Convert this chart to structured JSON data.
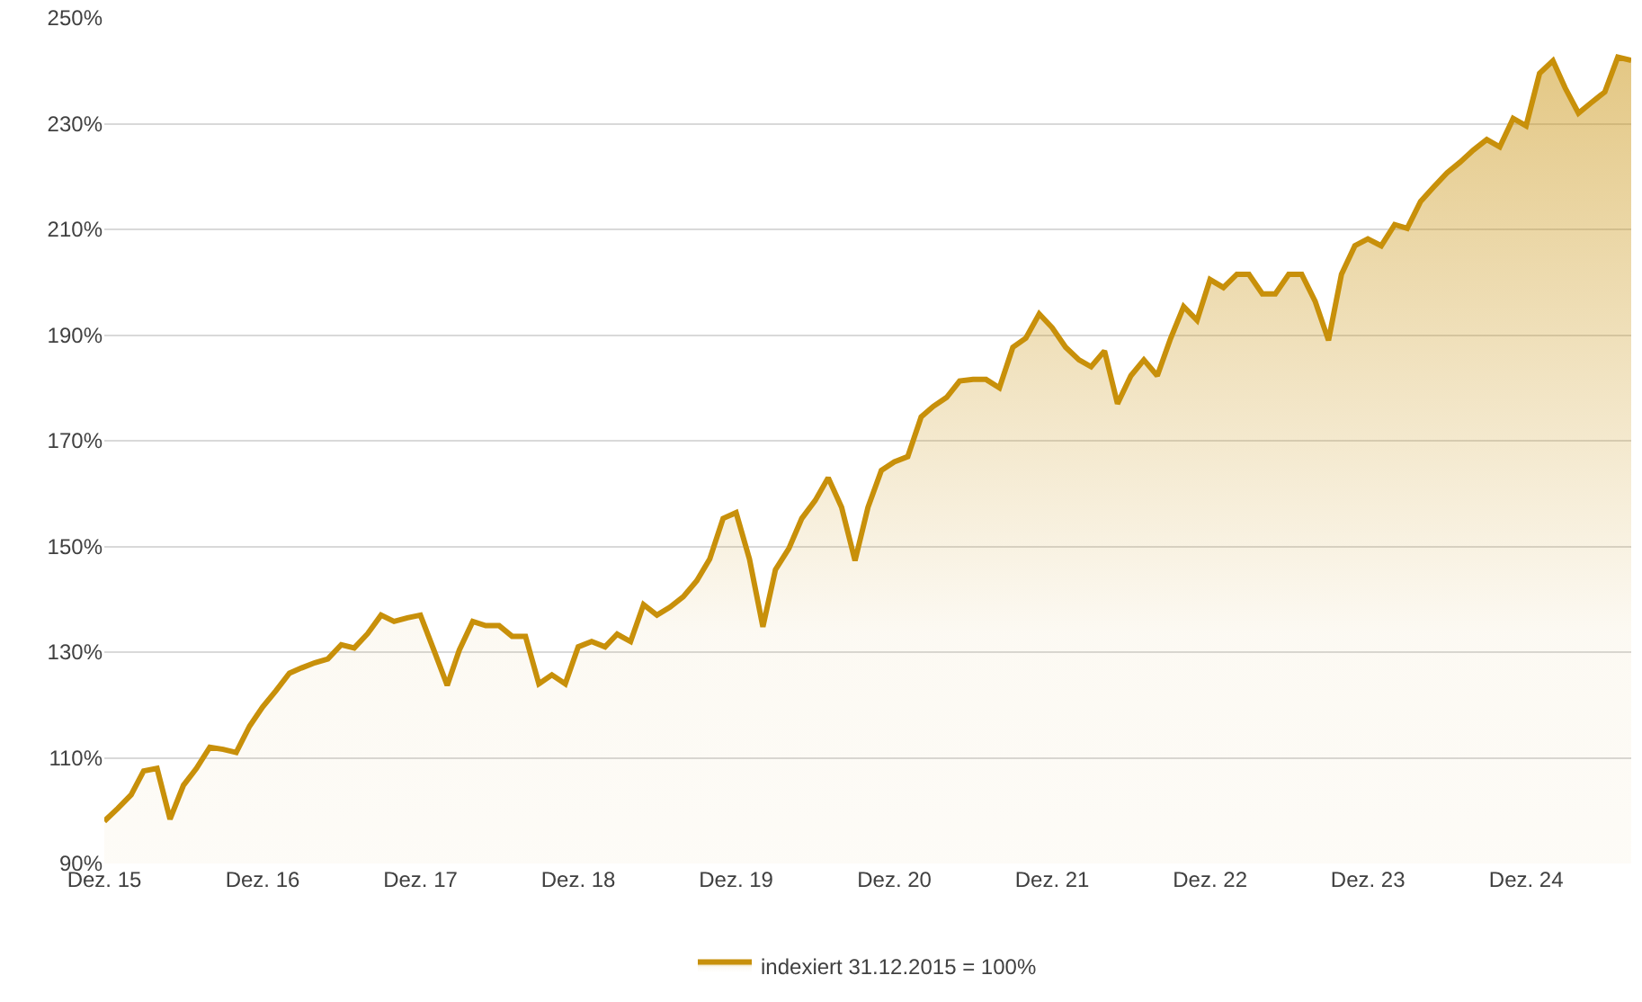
{
  "chart_data": {
    "type": "area",
    "legend": "bottom",
    "grid": "y",
    "marker": "none",
    "line_style": "solid",
    "xlim": [
      "2015-12",
      "2025-08"
    ],
    "xticks": [
      {
        "value": "2015-12",
        "label": "Dez. 15"
      },
      {
        "value": "2016-12",
        "label": "Dez. 16"
      },
      {
        "value": "2017-12",
        "label": "Dez. 17"
      },
      {
        "value": "2018-12",
        "label": "Dez. 18"
      },
      {
        "value": "2019-12",
        "label": "Dez. 19"
      },
      {
        "value": "2020-12",
        "label": "Dez. 20"
      },
      {
        "value": "2021-12",
        "label": "Dez. 21"
      },
      {
        "value": "2022-12",
        "label": "Dez. 22"
      },
      {
        "value": "2023-12",
        "label": "Dez. 23"
      },
      {
        "value": "2024-12",
        "label": "Dez. 24"
      }
    ],
    "ylim": [
      90,
      250
    ],
    "yticks": [
      {
        "value": 90,
        "label": "90%"
      },
      {
        "value": 110,
        "label": "110%"
      },
      {
        "value": 130,
        "label": "130%"
      },
      {
        "value": 150,
        "label": "150%"
      },
      {
        "value": 170,
        "label": "170%"
      },
      {
        "value": 190,
        "label": "190%"
      },
      {
        "value": 210,
        "label": "210%"
      },
      {
        "value": 230,
        "label": "230%"
      },
      {
        "value": 250,
        "label": "250%"
      }
    ],
    "x": [
      "2015-12",
      "2016-01",
      "2016-02",
      "2016-03",
      "2016-04",
      "2016-05",
      "2016-06",
      "2016-07",
      "2016-08",
      "2016-09",
      "2016-10",
      "2016-11",
      "2016-12",
      "2017-01",
      "2017-02",
      "2017-03",
      "2017-04",
      "2017-05",
      "2017-06",
      "2017-07",
      "2017-08",
      "2017-09",
      "2017-10",
      "2017-11",
      "2017-12",
      "2018-01",
      "2018-02",
      "2018-03",
      "2018-04",
      "2018-05",
      "2018-06",
      "2018-07",
      "2018-08",
      "2018-09",
      "2018-10",
      "2018-11",
      "2018-12",
      "2019-01",
      "2019-02",
      "2019-03",
      "2019-04",
      "2019-05",
      "2019-06",
      "2019-07",
      "2019-08",
      "2019-09",
      "2019-10",
      "2019-11",
      "2019-12",
      "2020-01",
      "2020-02",
      "2020-03",
      "2020-04",
      "2020-05",
      "2020-06",
      "2020-07",
      "2020-08",
      "2020-09",
      "2020-10",
      "2020-11",
      "2020-12",
      "2021-01",
      "2021-02",
      "2021-03",
      "2021-04",
      "2021-05",
      "2021-06",
      "2021-07",
      "2021-08",
      "2021-09",
      "2021-10",
      "2021-11",
      "2021-12",
      "2022-01",
      "2022-02",
      "2022-03",
      "2022-04",
      "2022-05",
      "2022-06",
      "2022-07",
      "2022-08",
      "2022-09",
      "2022-10",
      "2022-11",
      "2022-12",
      "2023-01",
      "2023-02",
      "2023-03",
      "2023-04",
      "2023-05",
      "2023-06",
      "2023-07",
      "2023-08",
      "2023-09",
      "2023-10",
      "2023-11",
      "2023-12",
      "2024-01",
      "2024-02",
      "2024-03",
      "2024-04",
      "2024-05",
      "2024-06",
      "2024-07",
      "2024-08",
      "2024-09",
      "2024-10",
      "2024-11",
      "2024-12",
      "2025-01",
      "2025-02",
      "2025-03",
      "2025-04",
      "2025-05",
      "2025-06",
      "2025-07",
      "2025-08"
    ],
    "series": [
      {
        "name": "indexiert 31.12.2015 = 100%",
        "color": "#c8900a",
        "values": [
          98,
          100.4,
          103,
          107.5,
          108,
          98.4,
          104.8,
          108,
          112,
          111.6,
          111,
          116,
          119.6,
          122.7,
          126,
          127,
          128,
          128.7,
          131.4,
          130.8,
          133.5,
          137,
          135.8,
          136.5,
          137,
          130.4,
          123.7,
          130.4,
          135.8,
          135,
          135,
          133,
          133,
          124,
          125.7,
          124,
          131,
          132,
          131,
          133.4,
          132,
          139,
          137,
          138.5,
          140.5,
          143.5,
          147.6,
          155.3,
          156.4,
          147.6,
          134.8,
          145.6,
          149.6,
          155.3,
          158.7,
          163,
          157.4,
          147.3,
          157.4,
          164.4,
          166,
          167,
          174.5,
          176.5,
          178.2,
          181.3,
          181.6,
          181.6,
          180,
          187.7,
          189.4,
          194,
          191.4,
          187.7,
          185.3,
          184,
          187,
          177,
          182.3,
          185.3,
          182.3,
          189.4,
          195.4,
          192.8,
          200.5,
          199,
          201.5,
          201.5,
          197.8,
          197.8,
          201.5,
          201.5,
          196.4,
          189,
          201.5,
          206.9,
          208.2,
          206.9,
          210.9,
          210.2,
          215.3,
          218,
          220.7,
          222.7,
          225,
          227,
          225.6,
          231,
          229.6,
          239.5,
          241.9,
          236.8,
          232,
          234,
          236,
          242.6,
          242
        ]
      }
    ]
  }
}
